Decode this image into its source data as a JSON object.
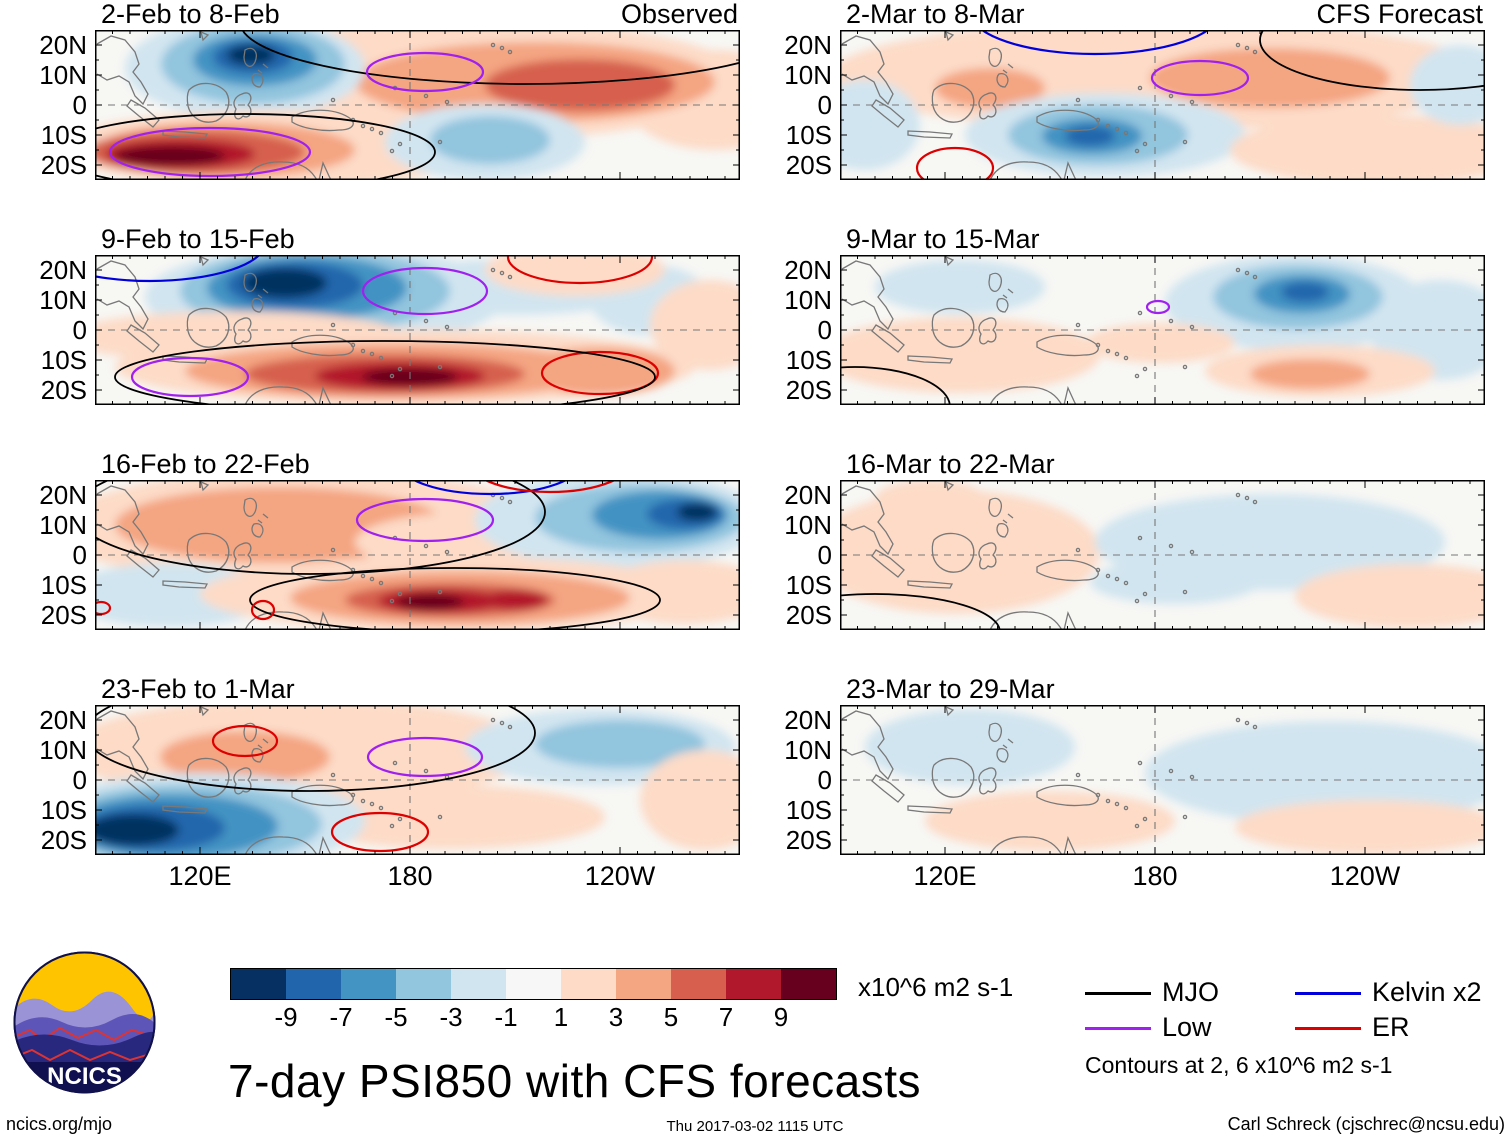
{
  "chart_data": {
    "type": "heatmap",
    "title": "7-day PSI850 with CFS forecasts",
    "units_label": "x10^6 m2 s-1",
    "column_headers": [
      "Observed",
      "CFS Forecast"
    ],
    "x_tick_labels": [
      "120E",
      "180",
      "120W"
    ],
    "y_tick_labels": [
      "20N",
      "10N",
      "0",
      "10S",
      "20S"
    ],
    "colorbar": {
      "tick_labels": [
        "-9",
        "-7",
        "-5",
        "-3",
        "-1",
        "1",
        "3",
        "5",
        "7",
        "9"
      ],
      "colors": [
        "#053061",
        "#2166ac",
        "#4393c3",
        "#92c5de",
        "#d1e5f0",
        "#f7f7f7",
        "#fddbc7",
        "#f4a582",
        "#d6604d",
        "#b2182b",
        "#67001f"
      ]
    },
    "legend": {
      "items": [
        {
          "label": "MJO",
          "key": "mjo",
          "color": "#000000"
        },
        {
          "label": "Low",
          "key": "low",
          "color": "#a020f0"
        },
        {
          "label": "Kelvin x2",
          "key": "kelvin",
          "color": "#0000dd"
        },
        {
          "label": "ER",
          "key": "er",
          "color": "#dd0000"
        }
      ],
      "note": "Contours at 2, 6 x10^6 m2 s-1"
    },
    "panels": [
      {
        "title": "2-Feb to 8-Feb",
        "corner": "Observed",
        "col": 0,
        "row": 0,
        "blobs": [
          [
            380,
            50,
            270,
            60,
            6
          ],
          [
            620,
            70,
            90,
            50,
            6
          ],
          [
            440,
            52,
            180,
            40,
            7
          ],
          [
            485,
            55,
            95,
            26,
            8
          ],
          [
            150,
            38,
            120,
            50,
            4
          ],
          [
            158,
            34,
            92,
            40,
            3
          ],
          [
            160,
            30,
            62,
            26,
            2
          ],
          [
            158,
            27,
            40,
            17,
            1
          ],
          [
            156,
            25,
            24,
            10,
            0
          ],
          [
            180,
            118,
            220,
            38,
            6
          ],
          [
            130,
            120,
            130,
            28,
            7
          ],
          [
            100,
            122,
            110,
            22,
            8
          ],
          [
            85,
            124,
            75,
            15,
            9
          ],
          [
            75,
            126,
            55,
            10,
            10
          ],
          [
            390,
            112,
            100,
            38,
            4
          ],
          [
            395,
            110,
            60,
            24,
            3
          ]
        ],
        "contours": [
          [
            430,
            -8,
            285,
            62,
            "mjo"
          ],
          [
            150,
            122,
            190,
            38,
            "mjo"
          ],
          [
            330,
            42,
            58,
            19,
            "low"
          ],
          [
            115,
            122,
            100,
            24,
            "low"
          ]
        ]
      },
      {
        "title": "2-Mar to 8-Mar",
        "corner": "CFS Forecast",
        "col": 1,
        "row": 0,
        "blobs": [
          [
            320,
            45,
            330,
            55,
            6
          ],
          [
            430,
            48,
            120,
            30,
            7
          ],
          [
            150,
            58,
            55,
            20,
            7
          ],
          [
            265,
            105,
            140,
            42,
            4
          ],
          [
            258,
            105,
            90,
            30,
            3
          ],
          [
            252,
            106,
            50,
            18,
            2
          ],
          [
            250,
            106,
            25,
            10,
            1
          ],
          [
            25,
            95,
            55,
            45,
            4
          ],
          [
            540,
            120,
            150,
            35,
            6
          ],
          [
            620,
            55,
            50,
            40,
            4
          ]
        ],
        "contours": [
          [
            255,
            -18,
            125,
            42,
            "kelvin"
          ],
          [
            360,
            48,
            48,
            17,
            "low"
          ],
          [
            580,
            10,
            160,
            50,
            "mjo"
          ],
          [
            115,
            138,
            38,
            20,
            "er"
          ]
        ]
      },
      {
        "title": "9-Feb to 15-Feb",
        "corner": "",
        "col": 0,
        "row": 1,
        "blobs": [
          [
            230,
            42,
            180,
            52,
            4
          ],
          [
            420,
            32,
            140,
            28,
            4
          ],
          [
            555,
            45,
            60,
            35,
            4
          ],
          [
            220,
            36,
            135,
            42,
            3
          ],
          [
            212,
            33,
            100,
            32,
            2
          ],
          [
            200,
            30,
            68,
            23,
            1
          ],
          [
            190,
            28,
            42,
            15,
            0
          ],
          [
            480,
            15,
            90,
            26,
            6
          ],
          [
            140,
            82,
            170,
            26,
            6
          ],
          [
            615,
            70,
            60,
            45,
            6
          ],
          [
            310,
            112,
            290,
            38,
            6
          ],
          [
            300,
            116,
            210,
            28,
            7
          ],
          [
            505,
            116,
            75,
            24,
            7
          ],
          [
            290,
            119,
            140,
            20,
            8
          ],
          [
            305,
            121,
            85,
            14,
            9
          ],
          [
            315,
            122,
            48,
            9,
            10
          ]
        ],
        "contours": [
          [
            55,
            -12,
            115,
            38,
            "kelvin"
          ],
          [
            330,
            36,
            62,
            23,
            "low"
          ],
          [
            95,
            122,
            58,
            19,
            "low"
          ],
          [
            485,
            2,
            72,
            26,
            "er"
          ],
          [
            505,
            118,
            58,
            21,
            "er"
          ],
          [
            290,
            122,
            270,
            36,
            "mjo"
          ]
        ]
      },
      {
        "title": "9-Mar to 15-Mar",
        "corner": "",
        "col": 1,
        "row": 1,
        "blobs": [
          [
            120,
            32,
            85,
            27,
            4
          ],
          [
            120,
            100,
            140,
            38,
            6
          ],
          [
            455,
            48,
            130,
            48,
            4
          ],
          [
            458,
            42,
            85,
            32,
            3
          ],
          [
            462,
            39,
            48,
            19,
            2
          ],
          [
            465,
            37,
            24,
            10,
            1
          ],
          [
            600,
            75,
            70,
            50,
            4
          ],
          [
            480,
            116,
            115,
            26,
            6
          ],
          [
            470,
            119,
            60,
            15,
            7
          ],
          [
            320,
            88,
            75,
            20,
            6
          ]
        ],
        "contours": [
          [
            318,
            52,
            11,
            6,
            "low"
          ],
          [
            15,
            152,
            95,
            40,
            "mjo"
          ]
        ]
      },
      {
        "title": "16-Feb to 22-Feb",
        "corner": "",
        "col": 0,
        "row": 2,
        "blobs": [
          [
            210,
            48,
            250,
            58,
            6
          ],
          [
            185,
            45,
            165,
            38,
            7
          ],
          [
            380,
            62,
            120,
            30,
            6
          ],
          [
            525,
            40,
            145,
            48,
            4
          ],
          [
            545,
            38,
            105,
            34,
            3
          ],
          [
            565,
            35,
            68,
            24,
            2
          ],
          [
            590,
            34,
            38,
            15,
            1
          ],
          [
            602,
            32,
            20,
            9,
            0
          ],
          [
            75,
            115,
            105,
            32,
            4
          ],
          [
            355,
            114,
            250,
            38,
            6
          ],
          [
            590,
            112,
            85,
            32,
            6
          ],
          [
            365,
            118,
            170,
            27,
            7
          ],
          [
            355,
            120,
            105,
            17,
            8
          ],
          [
            345,
            121,
            62,
            12,
            9
          ],
          [
            420,
            120,
            32,
            10,
            9
          ],
          [
            335,
            122,
            34,
            8,
            10
          ]
        ],
        "contours": [
          [
            215,
            32,
            235,
            62,
            "mjo"
          ],
          [
            360,
            120,
            205,
            32,
            "mjo"
          ],
          [
            330,
            40,
            68,
            21,
            "low"
          ],
          [
            395,
            -18,
            92,
            32,
            "kelvin"
          ],
          [
            455,
            -22,
            85,
            34,
            "er"
          ],
          [
            168,
            130,
            11,
            9,
            "er"
          ],
          [
            6,
            128,
            9,
            6,
            "er"
          ]
        ]
      },
      {
        "title": "16-Mar to 22-Mar",
        "corner": "",
        "col": 1,
        "row": 2,
        "blobs": [
          [
            115,
            72,
            145,
            62,
            6
          ],
          [
            90,
            18,
            55,
            18,
            6
          ],
          [
            430,
            62,
            175,
            48,
            4
          ],
          [
            335,
            102,
            85,
            22,
            4
          ],
          [
            570,
            116,
            115,
            32,
            6
          ]
        ],
        "contours": [
          [
            35,
            152,
            125,
            38,
            "mjo"
          ]
        ]
      },
      {
        "title": "23-Feb to 1-Mar",
        "corner": "",
        "col": 0,
        "row": 3,
        "blobs": [
          [
            205,
            45,
            235,
            52,
            6
          ],
          [
            150,
            52,
            85,
            26,
            7
          ],
          [
            505,
            42,
            135,
            38,
            4
          ],
          [
            525,
            39,
            85,
            24,
            3
          ],
          [
            355,
            112,
            155,
            32,
            6
          ],
          [
            610,
            95,
            65,
            50,
            6
          ],
          [
            105,
            116,
            165,
            48,
            4
          ],
          [
            92,
            119,
            135,
            40,
            3
          ],
          [
            78,
            121,
            105,
            32,
            2
          ],
          [
            58,
            123,
            72,
            23,
            1
          ],
          [
            38,
            125,
            46,
            16,
            0
          ]
        ],
        "contours": [
          [
            215,
            28,
            225,
            58,
            "mjo"
          ],
          [
            150,
            36,
            32,
            15,
            "er"
          ],
          [
            285,
            127,
            48,
            19,
            "er"
          ],
          [
            330,
            52,
            57,
            19,
            "low"
          ]
        ]
      },
      {
        "title": "23-Mar to 29-Mar",
        "corner": "",
        "col": 1,
        "row": 3,
        "blobs": [
          [
            130,
            42,
            105,
            38,
            4
          ],
          [
            490,
            68,
            185,
            52,
            4
          ],
          [
            210,
            116,
            125,
            30,
            6
          ],
          [
            530,
            122,
            135,
            27,
            6
          ]
        ],
        "contours": []
      }
    ]
  },
  "logo": {
    "label": "NCICS"
  },
  "footer": {
    "left": "ncics.org/mjo",
    "center": "Thu 2017-03-02 1115 UTC",
    "right": "Carl Schreck (cjschrec@ncsu.edu)"
  }
}
